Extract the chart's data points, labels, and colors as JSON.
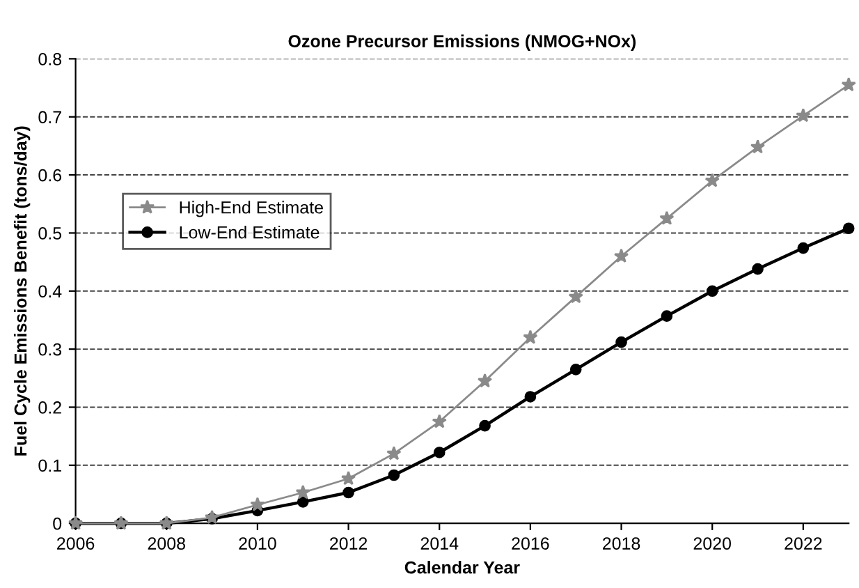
{
  "chart_data": {
    "type": "line",
    "title": "Ozone Precursor Emissions (NMOG+NOx)",
    "xlabel": "Calendar Year",
    "ylabel": "Fuel Cycle Emissions Benefit (tons/day)",
    "x": [
      2006,
      2007,
      2008,
      2009,
      2010,
      2011,
      2012,
      2013,
      2014,
      2015,
      2016,
      2017,
      2018,
      2019,
      2020,
      2021,
      2022,
      2023
    ],
    "series": [
      {
        "name": "High-End Estimate",
        "color": "#8a8a8a",
        "marker": "star",
        "values": [
          0,
          0,
          0,
          0.01,
          0.032,
          0.053,
          0.077,
          0.12,
          0.175,
          0.245,
          0.32,
          0.39,
          0.46,
          0.525,
          0.59,
          0.648,
          0.702,
          0.755
        ]
      },
      {
        "name": "Low-End Estimate",
        "color": "#000000",
        "marker": "circle",
        "values": [
          0,
          0,
          0,
          0.008,
          0.022,
          0.037,
          0.053,
          0.083,
          0.122,
          0.168,
          0.218,
          0.265,
          0.312,
          0.357,
          0.4,
          0.438,
          0.474,
          0.508
        ]
      }
    ],
    "xlim": [
      2006,
      2023
    ],
    "xticks": [
      2006,
      2008,
      2010,
      2012,
      2014,
      2016,
      2018,
      2020,
      2022
    ],
    "ylim": [
      0,
      0.8
    ],
    "yticks": [
      0,
      0.1,
      0.2,
      0.3,
      0.4,
      0.5,
      0.6,
      0.7,
      0.8
    ],
    "grid": "y",
    "legend": "center left",
    "line_style": "solid"
  }
}
